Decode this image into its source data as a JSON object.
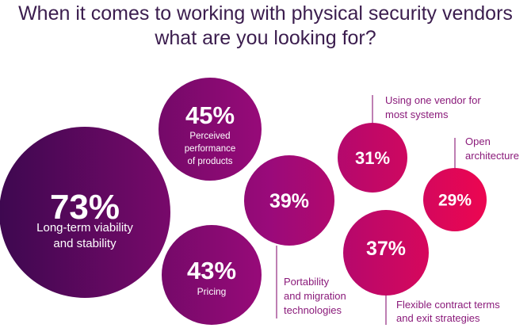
{
  "title_lines": [
    "When it comes to working with physical security vendors",
    "what are you looking for?"
  ],
  "chart_data": {
    "type": "bubble",
    "title": "When it comes to working with physical security vendors what are you looking for?",
    "unit": "%",
    "items": [
      {
        "label": "Long-term viability and stability",
        "value": 73,
        "label_lines": [
          "Long-term viability",
          "and stability"
        ],
        "label_position": "inside",
        "color": "#4a0a5a"
      },
      {
        "label": "Perceived performance of products",
        "value": 45,
        "label_lines": [
          "Perceived",
          "performance",
          "of products"
        ],
        "label_position": "inside",
        "color": "#6a0a6e"
      },
      {
        "label": "Pricing",
        "value": 43,
        "label_lines": [
          "Pricing"
        ],
        "label_position": "inside",
        "color": "#6c0a6e"
      },
      {
        "label": "Portability and migration technologies",
        "value": 39,
        "label_lines": [
          "Portability",
          "and migration",
          "technologies"
        ],
        "label_position": "below",
        "color": "#8e0a78"
      },
      {
        "label": "Using one vendor for most systems",
        "value": 31,
        "label_lines": [
          "Using one vendor for",
          "most systems"
        ],
        "label_position": "above",
        "color": "#c4087a"
      },
      {
        "label": "Open architecture",
        "value": 29,
        "label_lines": [
          "Open",
          "architecture"
        ],
        "label_position": "above",
        "color": "#e8065e"
      },
      {
        "label": "Flexible contract terms and exit strategies",
        "value": 37,
        "label_lines": [
          "Flexible contract terms",
          "and exit strategies"
        ],
        "label_position": "below",
        "color": "#c6087c"
      }
    ],
    "colors": {
      "text_dark": "#3b1d4e",
      "leader_text": "#8a1a7a",
      "gradient_start": "#3e0850",
      "gradient_end": "#ee0650"
    }
  }
}
